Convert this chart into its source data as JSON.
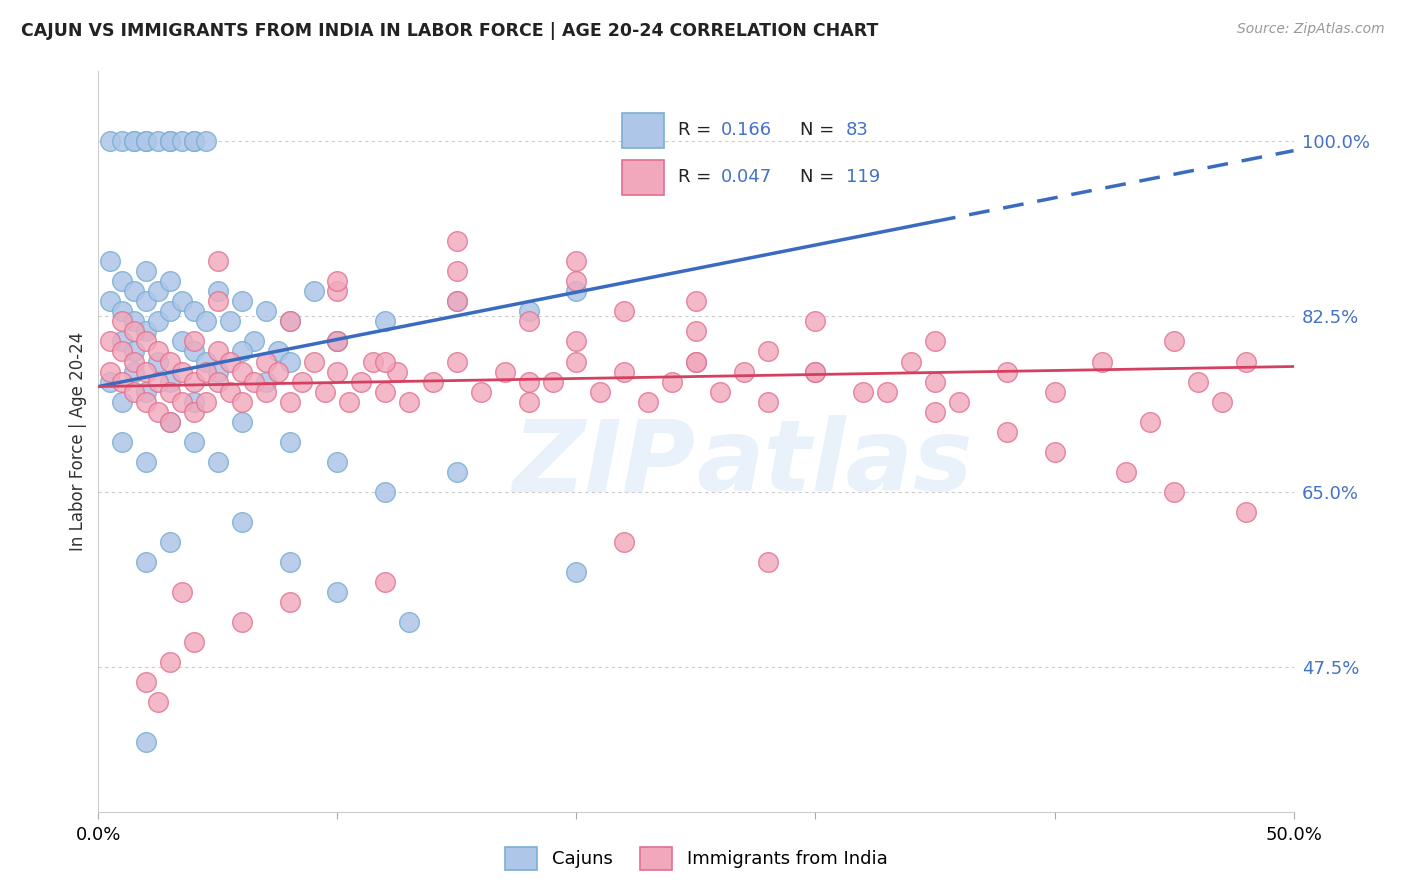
{
  "title": "CAJUN VS IMMIGRANTS FROM INDIA IN LABOR FORCE | AGE 20-24 CORRELATION CHART",
  "source": "Source: ZipAtlas.com",
  "ylabel": "In Labor Force | Age 20-24",
  "xlim": [
    0.0,
    0.5
  ],
  "ylim": [
    0.33,
    1.07
  ],
  "ytick_positions": [
    0.475,
    0.65,
    0.825,
    1.0
  ],
  "ytick_labels": [
    "47.5%",
    "65.0%",
    "82.5%",
    "100.0%"
  ],
  "cajun_color": "#aec6e8",
  "india_color": "#f2a8bc",
  "cajun_edge": "#7aafd4",
  "india_edge": "#e07090",
  "trend_cajun_color": "#3a6bbf",
  "trend_india_color": "#d44060",
  "background_color": "#ffffff",
  "watermark": "ZIPatlas",
  "cajun_R": 0.166,
  "cajun_N": 83,
  "india_R": 0.047,
  "india_N": 119,
  "legend_R1_text": "R = ",
  "legend_R1_val": " 0.166",
  "legend_N1_text": "N = ",
  "legend_N1_val": " 83",
  "legend_R2_text": "R = ",
  "legend_R2_val": " 0.047",
  "legend_N2_text": "N = ",
  "legend_N2_val": "119"
}
